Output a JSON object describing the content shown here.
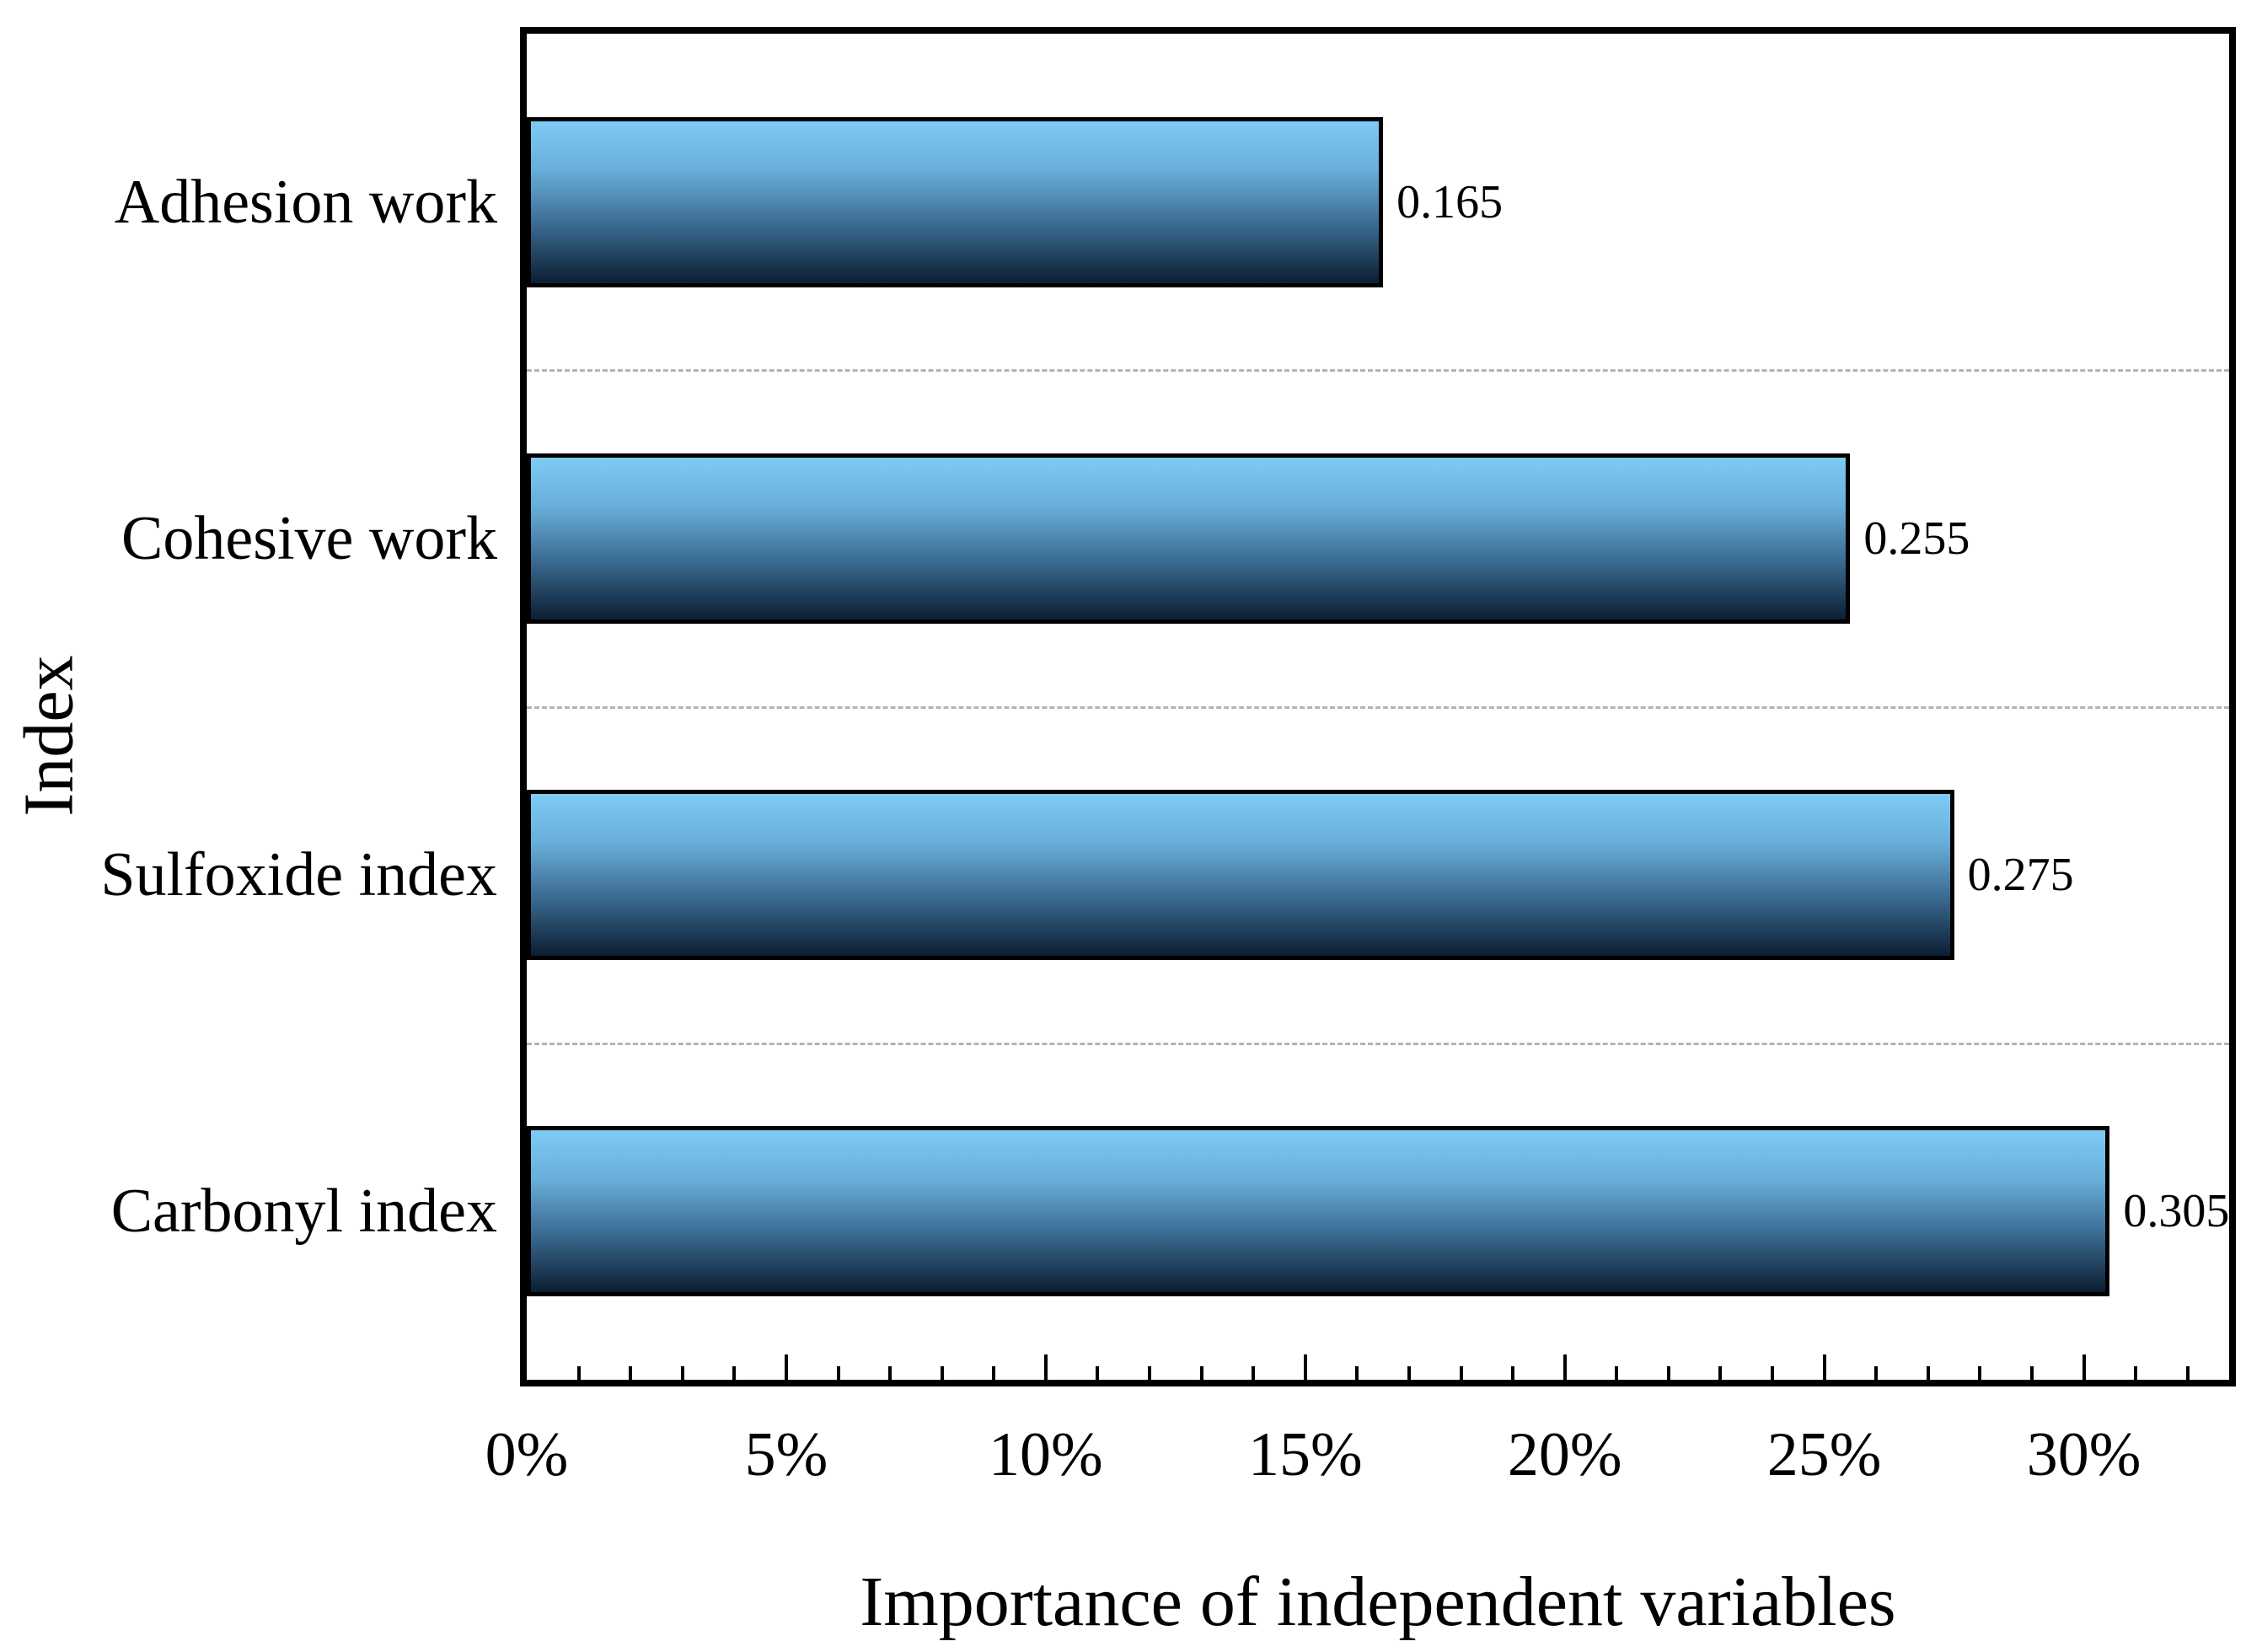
{
  "chart_data": {
    "type": "bar",
    "orientation": "horizontal",
    "title": "",
    "xlabel": "Importance of independent variables",
    "ylabel": "Index",
    "categories": [
      "Adhesion work",
      "Cohesive work",
      "Sulfoxide index",
      "Carbonyl index"
    ],
    "category_order": "top-to-bottom",
    "values": [
      0.165,
      0.255,
      0.275,
      0.305
    ],
    "value_labels": [
      "0.165",
      "0.255",
      "0.275",
      "0.305"
    ],
    "xlim": [
      0,
      0.328
    ],
    "x_major_ticks": [
      {
        "value": 0.0,
        "label": "0%"
      },
      {
        "value": 0.05,
        "label": "5%"
      },
      {
        "value": 0.1,
        "label": "10%"
      },
      {
        "value": 0.15,
        "label": "15%"
      },
      {
        "value": 0.2,
        "label": "20%"
      },
      {
        "value": 0.25,
        "label": "25%"
      },
      {
        "value": 0.3,
        "label": "30%"
      }
    ],
    "x_minor_tick_step": 0.01,
    "grid": {
      "style": "dashed",
      "color": "#b3b3b3",
      "between_categories": true
    },
    "legend": "none",
    "colors": {
      "bar_gradient_top": "#7ecbf6",
      "bar_gradient_upper_mid": "#68afda",
      "bar_gradient_lower_mid": "#3a688f",
      "bar_gradient_bottom": "#0c1e32",
      "bar_border": "#000000",
      "axis": "#000000",
      "grid": "#b3b3b3",
      "background": "#ffffff",
      "text": "#000000"
    }
  }
}
